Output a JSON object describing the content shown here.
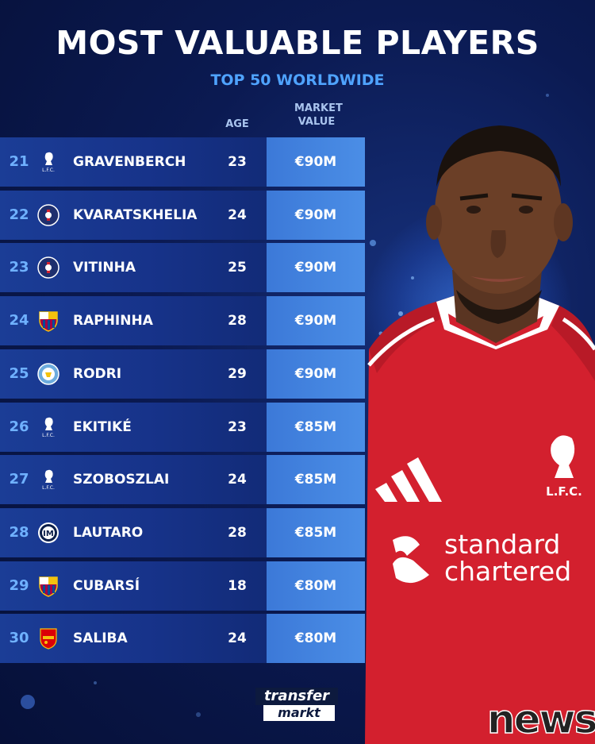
{
  "header": {
    "title": "MOST VALUABLE PLAYERS",
    "subtitle": "TOP 50 WORLDWIDE"
  },
  "columns": {
    "age": "AGE",
    "market_value": "MARKET VALUE"
  },
  "players": [
    {
      "rank": "21",
      "name": "GRAVENBERCH",
      "age": "23",
      "value": "€90M",
      "club_icon": "liverpool-crest"
    },
    {
      "rank": "22",
      "name": "KVARATSKHELIA",
      "age": "24",
      "value": "€90M",
      "club_icon": "psg-crest"
    },
    {
      "rank": "23",
      "name": "VITINHA",
      "age": "25",
      "value": "€90M",
      "club_icon": "psg-crest"
    },
    {
      "rank": "24",
      "name": "RAPHINHA",
      "age": "28",
      "value": "€90M",
      "club_icon": "barcelona-crest"
    },
    {
      "rank": "25",
      "name": "RODRI",
      "age": "29",
      "value": "€90M",
      "club_icon": "man-city-crest"
    },
    {
      "rank": "26",
      "name": "EKITIKÉ",
      "age": "23",
      "value": "€85M",
      "club_icon": "liverpool-crest"
    },
    {
      "rank": "27",
      "name": "SZOBOSZLAI",
      "age": "24",
      "value": "€85M",
      "club_icon": "liverpool-crest"
    },
    {
      "rank": "28",
      "name": "LAUTARO",
      "age": "28",
      "value": "€85M",
      "club_icon": "inter-crest"
    },
    {
      "rank": "29",
      "name": "CUBARSÍ",
      "age": "18",
      "value": "€80M",
      "club_icon": "barcelona-crest"
    },
    {
      "rank": "30",
      "name": "SALIBA",
      "age": "24",
      "value": "€80M",
      "club_icon": "arsenal-crest"
    }
  ],
  "jersey": {
    "club_text": "L.F.C.",
    "sponsor_line1": "standard",
    "sponsor_line2": "chartered"
  },
  "branding": {
    "logo_top": "transfer",
    "logo_bottom": "markt",
    "watermark": "news"
  },
  "colors": {
    "accent_blue": "#4fa3ff",
    "row_dark": "#17338a",
    "row_light": "#4b8ee6",
    "jersey_red": "#d3202e"
  }
}
